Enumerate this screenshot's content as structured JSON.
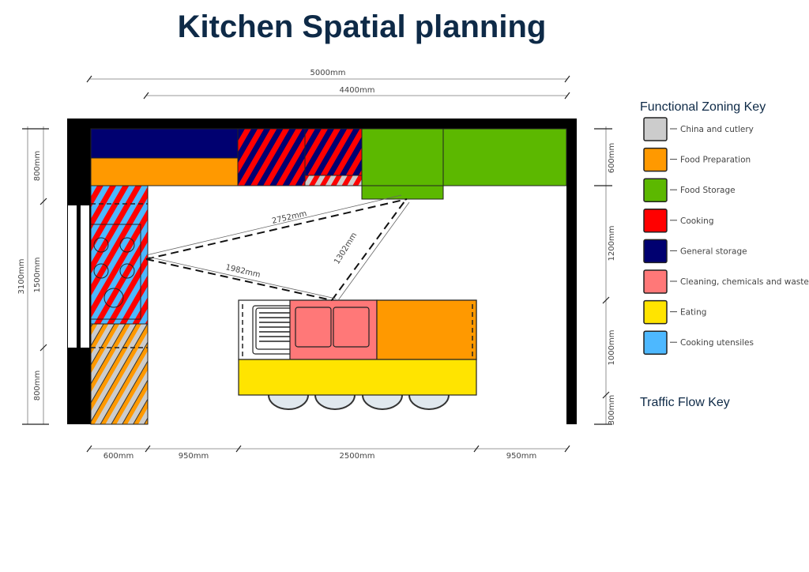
{
  "title": "Kitchen Spatial planning",
  "dimensions": {
    "top": [
      "5000mm",
      "4400mm"
    ],
    "left": [
      "3100mm",
      "800mm",
      "1500mm",
      "800mm"
    ],
    "right": [
      "600mm",
      "1200mm",
      "1000mm",
      "300mm"
    ],
    "bottom": [
      "600mm",
      "950mm",
      "2500mm",
      "950mm"
    ]
  },
  "traffic": [
    "2752mm",
    "1982mm",
    "1302mm"
  ],
  "zoning_key": {
    "title": "Functional Zoning Key",
    "items": [
      {
        "label": "China and cutlery",
        "color": "#cccccc"
      },
      {
        "label": "Food Preparation",
        "color": "#ff9900"
      },
      {
        "label": "Food Storage",
        "color": "#5cb800"
      },
      {
        "label": "Cooking",
        "color": "#ff0000"
      },
      {
        "label": "General storage",
        "color": "#000070"
      },
      {
        "label": "Cleaning, chemicals and waste",
        "color": "#ff7878"
      },
      {
        "label": "Eating",
        "color": "#ffe400"
      },
      {
        "label": "Cooking utensiles",
        "color": "#4db8ff"
      }
    ]
  },
  "traffic_key": {
    "title": "Traffic Flow Key"
  }
}
